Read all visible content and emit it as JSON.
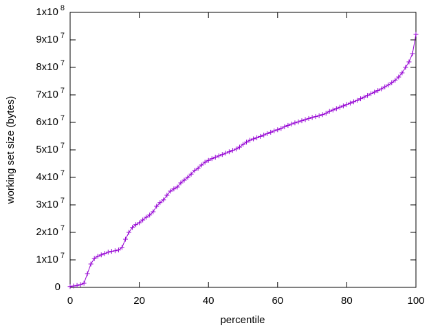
{
  "chart_data": {
    "type": "line",
    "xlabel": "percentile",
    "ylabel": "working set size (bytes)",
    "color": "#9400d3",
    "x": [
      0,
      1,
      2,
      3,
      4,
      5,
      6,
      7,
      8,
      9,
      10,
      11,
      12,
      13,
      14,
      15,
      16,
      17,
      18,
      19,
      20,
      21,
      22,
      23,
      24,
      25,
      26,
      27,
      28,
      29,
      30,
      31,
      32,
      33,
      34,
      35,
      36,
      37,
      38,
      39,
      40,
      41,
      42,
      43,
      44,
      45,
      46,
      47,
      48,
      49,
      50,
      51,
      52,
      53,
      54,
      55,
      56,
      57,
      58,
      59,
      60,
      61,
      62,
      63,
      64,
      65,
      66,
      67,
      68,
      69,
      70,
      71,
      72,
      73,
      74,
      75,
      76,
      77,
      78,
      79,
      80,
      81,
      82,
      83,
      84,
      85,
      86,
      87,
      88,
      89,
      90,
      91,
      92,
      93,
      94,
      95,
      96,
      97,
      98,
      99,
      100
    ],
    "values": [
      300000,
      500000,
      700000,
      1000000,
      1500000,
      5000000,
      8500000,
      10500000,
      11300000,
      11800000,
      12300000,
      12800000,
      13100000,
      13300000,
      13600000,
      14500000,
      17500000,
      20000000,
      21800000,
      22800000,
      23500000,
      24500000,
      25500000,
      26300000,
      27500000,
      29500000,
      30800000,
      31800000,
      33500000,
      35000000,
      35800000,
      36500000,
      38000000,
      39000000,
      40000000,
      41200000,
      42500000,
      43300000,
      44500000,
      45500000,
      46200000,
      46800000,
      47300000,
      47800000,
      48300000,
      48800000,
      49300000,
      49800000,
      50300000,
      51000000,
      52000000,
      52800000,
      53500000,
      54000000,
      54400000,
      54900000,
      55400000,
      55900000,
      56400000,
      56900000,
      57300000,
      57800000,
      58400000,
      58900000,
      59400000,
      59800000,
      60200000,
      60600000,
      61000000,
      61400000,
      61800000,
      62100000,
      62400000,
      62800000,
      63300000,
      64000000,
      64500000,
      65000000,
      65500000,
      66000000,
      66500000,
      67000000,
      67500000,
      68000000,
      68600000,
      69200000,
      69800000,
      70400000,
      71000000,
      71600000,
      72200000,
      72900000,
      73600000,
      74400000,
      75300000,
      76500000,
      78000000,
      80000000,
      82000000,
      85000000,
      92000000
    ],
    "xlim": [
      0,
      100
    ],
    "xticks": [
      0,
      20,
      40,
      60,
      80,
      100
    ],
    "ylim": [
      0,
      100000000
    ],
    "yticks": [
      0,
      {
        "value": 10000000,
        "label": "1x10",
        "exponent": "7"
      },
      {
        "value": 20000000,
        "label": "2x10",
        "exponent": "7"
      },
      {
        "value": 30000000,
        "label": "3x10",
        "exponent": "7"
      },
      {
        "value": 40000000,
        "label": "4x10",
        "exponent": "7"
      },
      {
        "value": 50000000,
        "label": "5x10",
        "exponent": "7"
      },
      {
        "value": 60000000,
        "label": "6x10",
        "exponent": "7"
      },
      {
        "value": 70000000,
        "label": "7x10",
        "exponent": "7"
      },
      {
        "value": 80000000,
        "label": "8x10",
        "exponent": "7"
      },
      {
        "value": 90000000,
        "label": "9x10",
        "exponent": "7"
      },
      {
        "value": 100000000,
        "label": "1x10",
        "exponent": "8"
      }
    ]
  }
}
